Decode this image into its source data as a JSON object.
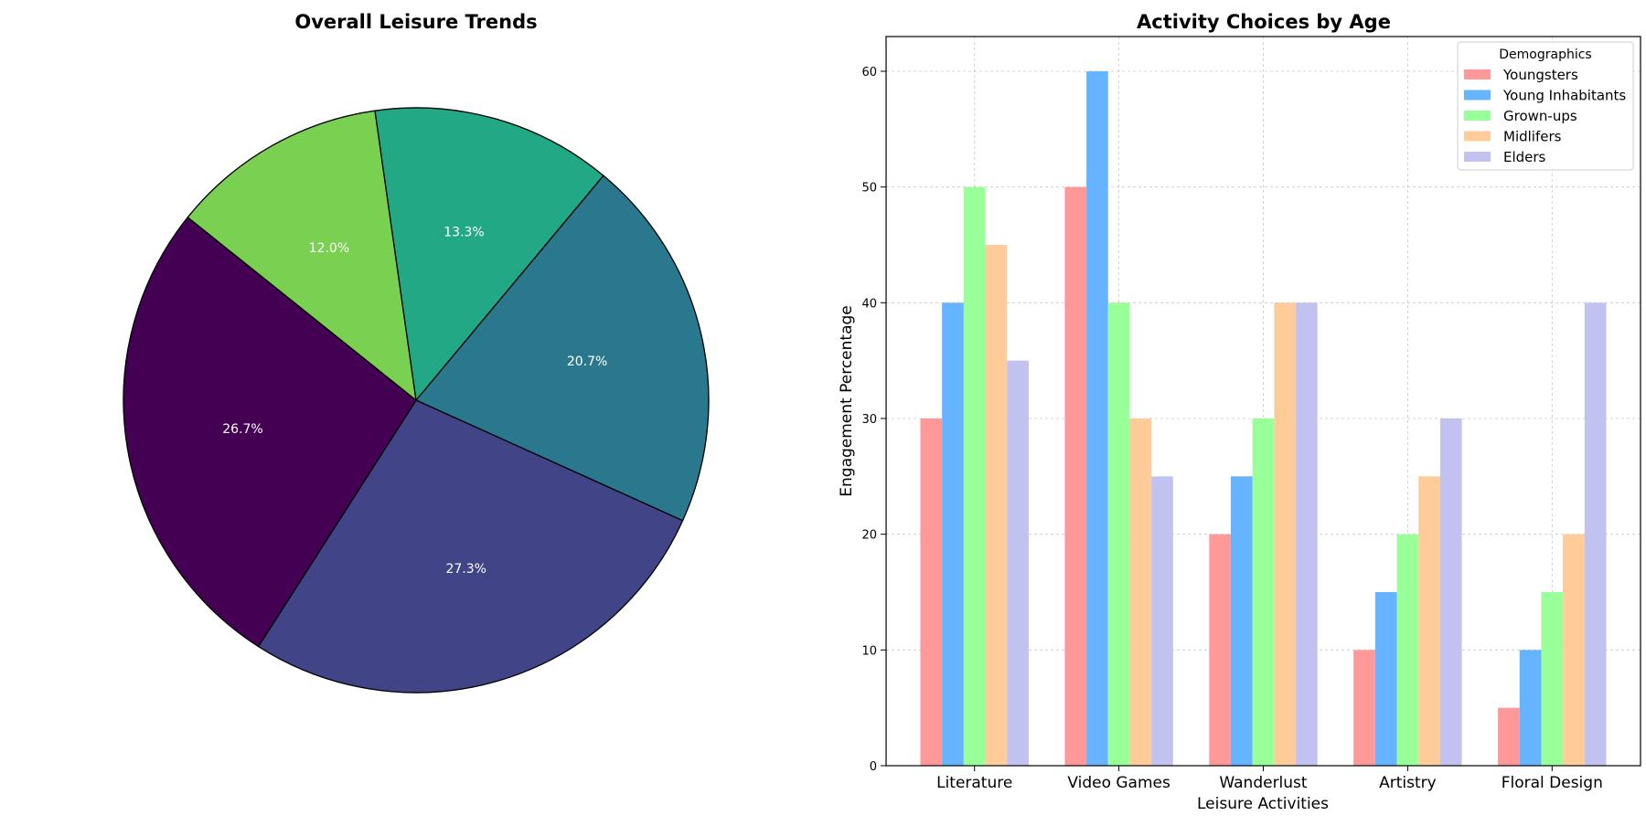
{
  "chart_data": [
    {
      "type": "pie",
      "title": "Overall Leisure Trends",
      "slices": [
        {
          "value": 20.7,
          "label": "20.7%",
          "color": "#2A788E"
        },
        {
          "value": 27.3,
          "label": "27.3%",
          "color": "#414487"
        },
        {
          "value": 26.7,
          "label": "26.7%",
          "color": "#440154"
        },
        {
          "value": 12.0,
          "label": "12.0%",
          "color": "#7AD151"
        },
        {
          "value": 13.3,
          "label": "13.3%",
          "color": "#22A884"
        }
      ],
      "start_angle_deg": 50.2,
      "direction": "clockwise",
      "edge_color": "#000000",
      "label_color": "#ffffff"
    },
    {
      "type": "bar",
      "title": "Activity Choices by Age",
      "xlabel": "Leisure Activities",
      "ylabel": "Engagement Percentage",
      "categories": [
        "Literature",
        "Video Games",
        "Wanderlust",
        "Artistry",
        "Floral Design"
      ],
      "series": [
        {
          "name": "Youngsters",
          "color": "#FF9999",
          "values": [
            30,
            50,
            20,
            10,
            5
          ]
        },
        {
          "name": "Young Inhabitants",
          "color": "#66B3FF",
          "values": [
            40,
            60,
            25,
            15,
            10
          ]
        },
        {
          "name": "Grown-ups",
          "color": "#99FF99",
          "values": [
            50,
            40,
            30,
            20,
            15
          ]
        },
        {
          "name": "Midlifers",
          "color": "#FFCC99",
          "values": [
            45,
            30,
            40,
            25,
            20
          ]
        },
        {
          "name": "Elders",
          "color": "#C2C2F0",
          "values": [
            35,
            25,
            40,
            30,
            40
          ]
        }
      ],
      "ylim": [
        0,
        63
      ],
      "yticks": [
        0,
        10,
        20,
        30,
        40,
        50,
        60
      ],
      "grid": true,
      "legend": {
        "title": "Demographics",
        "placement": "top-right"
      }
    }
  ]
}
